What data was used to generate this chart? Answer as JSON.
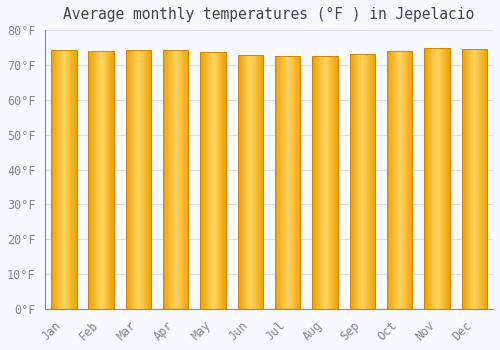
{
  "title": "Average monthly temperatures (°F ) in Jepelacio",
  "months": [
    "Jan",
    "Feb",
    "Mar",
    "Apr",
    "May",
    "Jun",
    "Jul",
    "Aug",
    "Sep",
    "Oct",
    "Nov",
    "Dec"
  ],
  "values": [
    74.3,
    74.1,
    74.3,
    74.3,
    73.6,
    72.9,
    72.5,
    72.7,
    73.0,
    73.9,
    74.8,
    74.5
  ],
  "bar_color_center": "#FFD060",
  "bar_color_edge": "#F0A000",
  "background_color": "#F8F8FF",
  "plot_bg_color": "#F8F8FF",
  "grid_color": "#DDDDEE",
  "ylim": [
    0,
    80
  ],
  "yticks": [
    0,
    10,
    20,
    30,
    40,
    50,
    60,
    70,
    80
  ],
  "title_fontsize": 10.5,
  "tick_fontsize": 8.5,
  "bar_width": 0.68
}
